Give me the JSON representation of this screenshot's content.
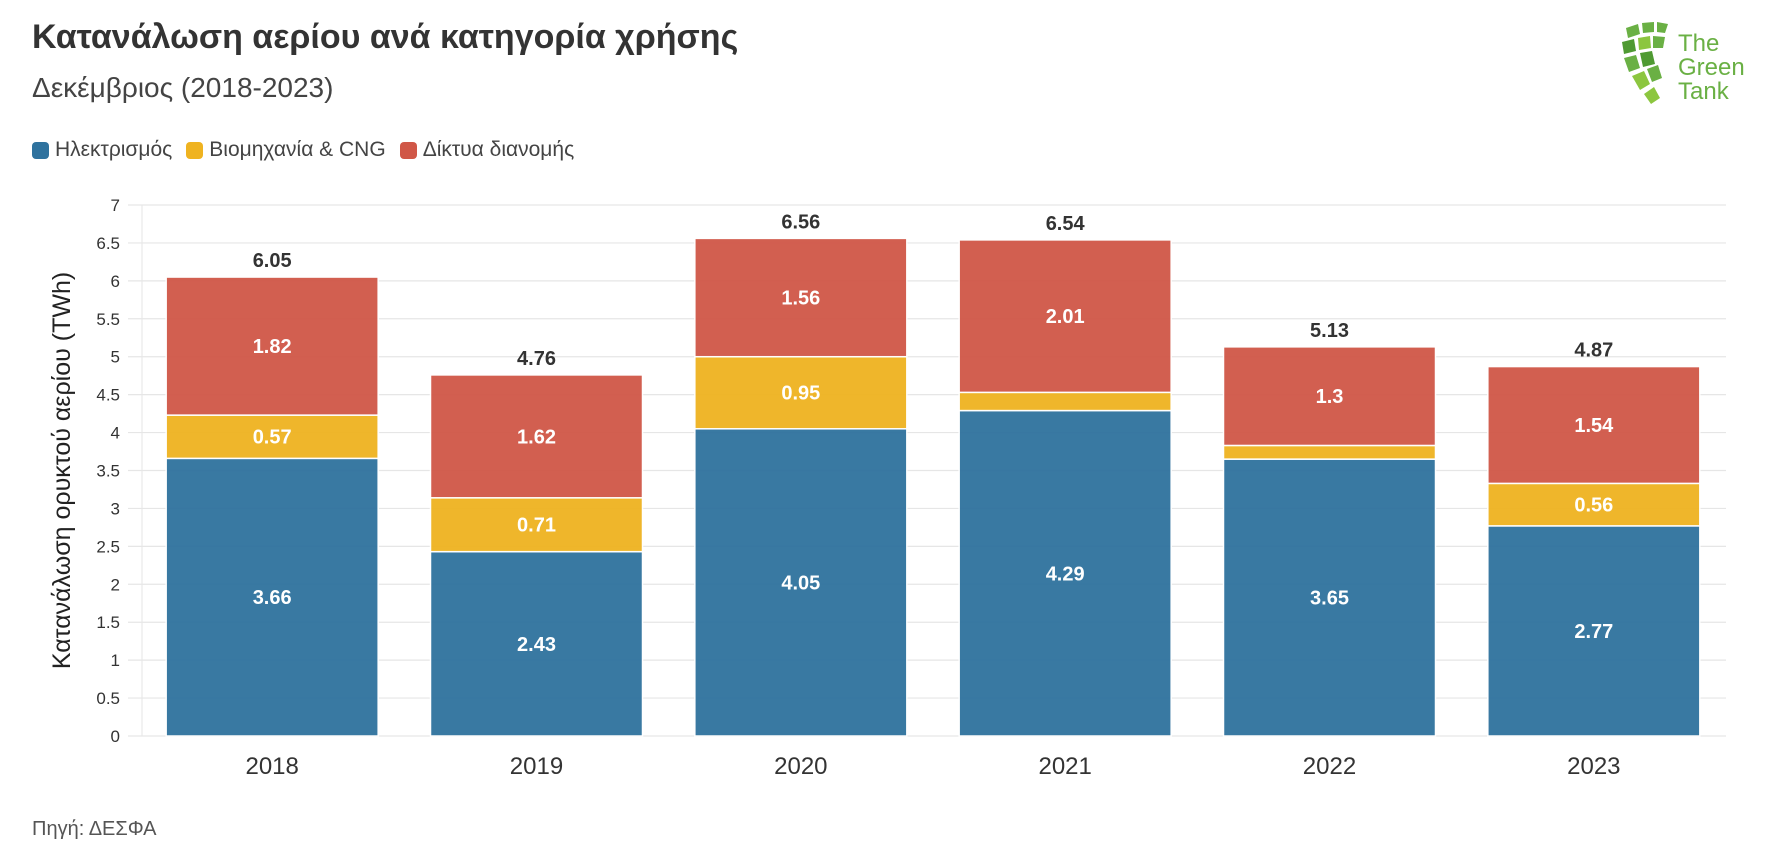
{
  "header": {
    "title": "Κατανάλωση αερίου ανά κατηγορία χρήσης",
    "subtitle": "Δεκέμβριος (2018-2023)"
  },
  "logo": {
    "line1": "The",
    "line2": "Green",
    "line3": "Tank",
    "color": "#6ab044"
  },
  "legend": [
    {
      "label": "Ηλεκτρισμός",
      "color": "#2f729e"
    },
    {
      "label": "Βιομηχανία & CNG",
      "color": "#efb320"
    },
    {
      "label": "Δίκτυα διανομής",
      "color": "#d05747"
    }
  ],
  "source": "Πηγή: ΔΕΣΦΑ",
  "chart_data": {
    "type": "bar",
    "stacked": true,
    "categories": [
      "2018",
      "2019",
      "2020",
      "2021",
      "2022",
      "2023"
    ],
    "series": [
      {
        "name": "Ηλεκτρισμός",
        "color": "#2f729e",
        "values": [
          3.66,
          2.43,
          4.05,
          4.29,
          3.65,
          2.77
        ],
        "labels": [
          "3.66",
          "2.43",
          "4.05",
          "4.29",
          "3.65",
          "2.77"
        ]
      },
      {
        "name": "Βιομηχανία & CNG",
        "color": "#efb320",
        "values": [
          0.57,
          0.71,
          0.95,
          0.24,
          0.18,
          0.56
        ],
        "labels": [
          "0.57",
          "0.71",
          "0.95",
          "",
          "",
          "0.56"
        ]
      },
      {
        "name": "Δίκτυα διανομής",
        "color": "#d05747",
        "values": [
          1.82,
          1.62,
          1.56,
          2.01,
          1.3,
          1.54
        ],
        "labels": [
          "1.82",
          "1.62",
          "1.56",
          "2.01",
          "1.3",
          "1.54"
        ]
      }
    ],
    "totals": [
      "6.05",
      "4.76",
      "6.56",
      "6.54",
      "5.13",
      "4.87"
    ],
    "ylabel": "Κατανάλωση ορυκτού αερίου (TWh)",
    "xlabel": "",
    "ylim": [
      0,
      7
    ],
    "yticks": [
      "0",
      "0.5",
      "1",
      "1.5",
      "2",
      "2.5",
      "3",
      "3.5",
      "4",
      "4.5",
      "5",
      "5.5",
      "6",
      "6.5",
      "7"
    ],
    "grid": true,
    "legend_position": "top-left"
  }
}
